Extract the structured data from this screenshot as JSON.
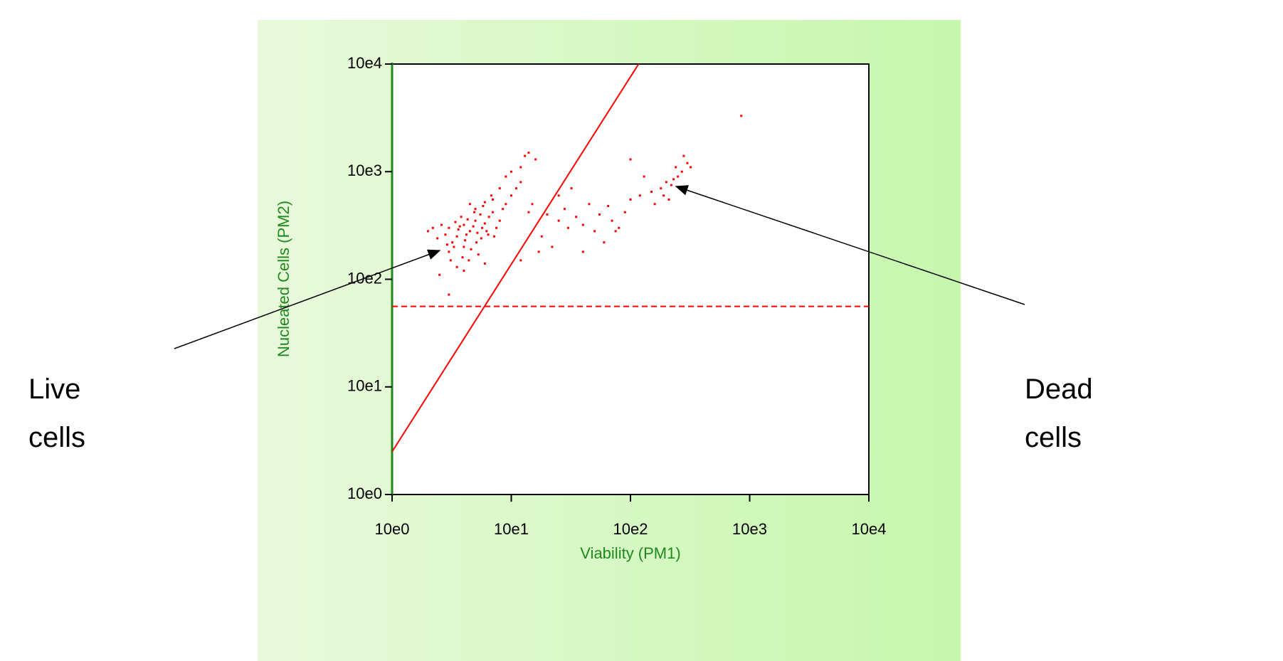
{
  "chart_data": {
    "type": "scatter",
    "x_label": "Viability (PM1)",
    "y_label": "Nucleated Cells (PM2)",
    "log_x": true,
    "log_y": true,
    "xlim": [
      1,
      10000
    ],
    "ylim": [
      1,
      10000
    ],
    "xticks": [
      {
        "value": 1,
        "label": "10e0"
      },
      {
        "value": 10,
        "label": "10e1"
      },
      {
        "value": 100,
        "label": "10e2"
      },
      {
        "value": 1000,
        "label": "10e3"
      },
      {
        "value": 10000,
        "label": "10e4"
      }
    ],
    "yticks": [
      {
        "value": 1,
        "label": "10e0"
      },
      {
        "value": 10,
        "label": "10e1"
      },
      {
        "value": 100,
        "label": "10e2"
      },
      {
        "value": 1000,
        "label": "10e3"
      },
      {
        "value": 10000,
        "label": "10e4"
      }
    ],
    "color": "#ff0000",
    "x": [
      3,
      3.5,
      4,
      4.5,
      5,
      5.5,
      4,
      3.2,
      3.8,
      4.2,
      4.8,
      5.2,
      6,
      6.5,
      7,
      5,
      4.5,
      6,
      3,
      2.8,
      2.6,
      3.4,
      3.6,
      4.1,
      4.6,
      5.1,
      5.6,
      6.2,
      3.9,
      4.4,
      5.3,
      3.3,
      2.4,
      2.2,
      2,
      7.5,
      8,
      8.5,
      9,
      10,
      11,
      12,
      7,
      6.8,
      5.8,
      4.9,
      4.3,
      3.7,
      5.7,
      6.4,
      7.2,
      2.9,
      3.1,
      3.5,
      2.5,
      3,
      4,
      6,
      12,
      14,
      16,
      9,
      10,
      13,
      15,
      20,
      25,
      30,
      18,
      22,
      28,
      35,
      40,
      45,
      50,
      55,
      60,
      70,
      80,
      90,
      100,
      25,
      32,
      100,
      120,
      150,
      160,
      180,
      200,
      220,
      250,
      270,
      300,
      320,
      230,
      190,
      210,
      17,
      14,
      12,
      8,
      850,
      130,
      260,
      280,
      240,
      40,
      65,
      75
    ],
    "y": [
      300,
      250,
      320,
      280,
      350,
      400,
      200,
      220,
      380,
      260,
      310,
      270,
      330,
      380,
      420,
      450,
      500,
      520,
      180,
      260,
      320,
      340,
      290,
      230,
      190,
      220,
      240,
      280,
      160,
      150,
      170,
      200,
      240,
      300,
      280,
      300,
      350,
      450,
      500,
      600,
      700,
      800,
      550,
      600,
      480,
      420,
      360,
      310,
      300,
      260,
      250,
      210,
      150,
      130,
      110,
      72,
      120,
      140,
      1100,
      1500,
      1300,
      900,
      1000,
      1400,
      500,
      400,
      350,
      300,
      250,
      200,
      450,
      380,
      320,
      500,
      280,
      400,
      220,
      350,
      300,
      420,
      550,
      600,
      700,
      1300,
      600,
      650,
      500,
      700,
      800,
      750,
      900,
      1000,
      1200,
      1100,
      850,
      600,
      550,
      180,
      420,
      150,
      700,
      3300,
      900,
      700,
      1400,
      1100,
      180,
      480,
      280
    ],
    "gate_lines": [
      {
        "x": [
          1,
          117
        ],
        "y": [
          2.5,
          10000
        ],
        "dashed": false
      },
      {
        "x": [
          1,
          10000
        ],
        "y": [
          56,
          56
        ],
        "dashed": true
      }
    ],
    "annotations": [
      {
        "text": [
          "Live",
          "cells"
        ],
        "x": 4.5,
        "y": 300
      },
      {
        "text": [
          "Dead",
          "cells"
        ],
        "x": 260,
        "y": 750
      }
    ]
  }
}
